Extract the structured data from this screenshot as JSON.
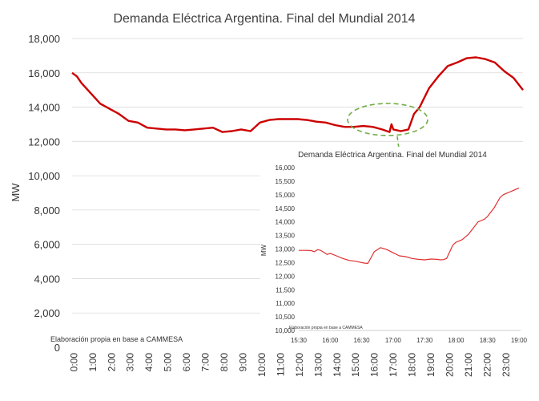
{
  "chart_data": [
    {
      "type": "line",
      "title": "Demanda Eléctrica Argentina. Final del Mundial 2014",
      "xlabel": "",
      "ylabel": "MW",
      "ylim": [
        0,
        18000
      ],
      "yticks": [
        0,
        2000,
        4000,
        6000,
        8000,
        10000,
        12000,
        14000,
        16000,
        18000
      ],
      "ytick_labels": [
        "0",
        "2,000",
        "4,000",
        "6,000",
        "8,000",
        "10,000",
        "12,000",
        "14,000",
        "16,000",
        "18,000"
      ],
      "xtick_labels": [
        "0:00",
        "1:00",
        "2:00",
        "3:00",
        "4:00",
        "5:00",
        "6:00",
        "7:00",
        "8:00",
        "9:00",
        "10:00",
        "11:00",
        "12:00",
        "13:00",
        "14:00",
        "15:00",
        "16:00",
        "17:00",
        "18:00",
        "19:00",
        "20:00",
        "21:00",
        "22:00",
        "23:00"
      ],
      "xlim": [
        0,
        24
      ],
      "grid": true,
      "line_color": "#cc0000",
      "note": "Elaboración propia en base a CAMMESA",
      "series": [
        {
          "x": [
            0,
            0.25,
            0.5,
            1,
            1.5,
            2,
            2.5,
            3,
            3.5,
            4,
            4.5,
            5,
            5.5,
            6,
            6.5,
            7,
            7.5,
            8,
            8.5,
            9,
            9.5,
            10,
            10.5,
            11,
            11.5,
            12,
            12.5,
            13,
            13.5,
            14,
            14.5,
            15,
            15.5,
            16,
            16.5,
            16.9,
            17,
            17.1,
            17.5,
            17.9,
            18,
            18.2,
            18.5,
            19,
            19.5,
            20,
            20.5,
            21,
            21.5,
            22,
            22.5,
            23,
            23.5,
            24
          ],
          "y": [
            16000,
            15800,
            15400,
            14800,
            14200,
            13900,
            13600,
            13200,
            13100,
            12800,
            12750,
            12700,
            12700,
            12650,
            12700,
            12750,
            12800,
            12550,
            12600,
            12700,
            12600,
            13100,
            13250,
            13300,
            13300,
            13300,
            13250,
            13150,
            13100,
            12950,
            12850,
            12850,
            12900,
            12850,
            12700,
            12550,
            13000,
            12700,
            12600,
            12700,
            13000,
            13600,
            14000,
            15100,
            15800,
            16400,
            16600,
            16850,
            16900,
            16800,
            16600,
            16100,
            15700,
            15000
          ]
        }
      ]
    },
    {
      "type": "line",
      "title": "Demanda Eléctrica Argentina. Final del Mundial 2014",
      "xlabel": "",
      "ylabel": "MW",
      "ylim": [
        10000,
        16000
      ],
      "yticks": [
        10000,
        10500,
        11000,
        11500,
        12000,
        12500,
        13000,
        13500,
        14000,
        14500,
        15000,
        15500,
        16000
      ],
      "ytick_labels": [
        "10,000",
        "10,500",
        "11,000",
        "11,500",
        "12,000",
        "12,500",
        "13,000",
        "13,500",
        "14,000",
        "14,500",
        "15,000",
        "15,500",
        "16,000"
      ],
      "xtick_labels": [
        "15:30",
        "16:00",
        "16:30",
        "17:00",
        "17:30",
        "18:00",
        "18:30",
        "19:00"
      ],
      "xlim": [
        15.5,
        19.0
      ],
      "grid": false,
      "line_color": "#e03030",
      "note": "Elaboración propia en base a CAMMESA",
      "series": [
        {
          "x": [
            15.5,
            15.6,
            15.7,
            15.75,
            15.8,
            15.85,
            15.9,
            15.95,
            16.0,
            16.1,
            16.2,
            16.3,
            16.4,
            16.5,
            16.55,
            16.6,
            16.7,
            16.8,
            16.9,
            17.0,
            17.1,
            17.2,
            17.3,
            17.4,
            17.5,
            17.6,
            17.7,
            17.75,
            17.8,
            17.85,
            17.9,
            17.95,
            18.0,
            18.05,
            18.1,
            18.15,
            18.2,
            18.25,
            18.3,
            18.35,
            18.4,
            18.45,
            18.5,
            18.55,
            18.6,
            18.65,
            18.7,
            18.75,
            18.8,
            18.85,
            18.9,
            18.95,
            19.0
          ],
          "y": [
            12950,
            12950,
            12940,
            12900,
            12980,
            12950,
            12880,
            12800,
            12840,
            12750,
            12650,
            12580,
            12550,
            12500,
            12480,
            12470,
            12900,
            13050,
            12980,
            12860,
            12750,
            12720,
            12650,
            12620,
            12600,
            12630,
            12620,
            12600,
            12610,
            12650,
            12900,
            13150,
            13250,
            13300,
            13350,
            13450,
            13550,
            13700,
            13850,
            14000,
            14050,
            14100,
            14200,
            14350,
            14500,
            14700,
            14900,
            15000,
            15050,
            15100,
            15150,
            15200,
            15250
          ]
        }
      ]
    }
  ]
}
